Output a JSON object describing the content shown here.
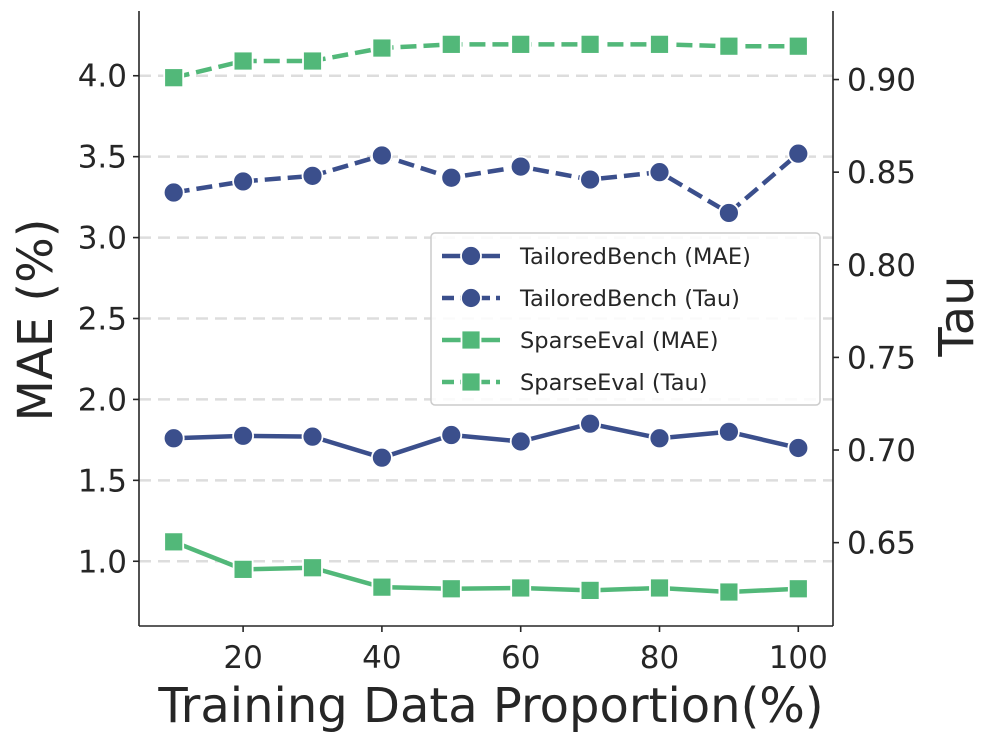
{
  "chart_data": {
    "type": "line",
    "xlabel": "Training Data Proportion(%)",
    "ylabel_left": "MAE (%)",
    "ylabel_right": "Tau",
    "x": [
      10,
      20,
      30,
      40,
      50,
      60,
      70,
      80,
      90,
      100
    ],
    "xticks": [
      20,
      40,
      60,
      80,
      100
    ],
    "xticks_text": [
      "20",
      "40",
      "60",
      "80",
      "100"
    ],
    "xlim": [
      5,
      105
    ],
    "ylim_left": [
      0.6,
      4.4
    ],
    "yticks_left": [
      1.0,
      1.5,
      2.0,
      2.5,
      3.0,
      3.5,
      4.0
    ],
    "yticks_left_text": [
      "1.0",
      "1.5",
      "2.0",
      "2.5",
      "3.0",
      "3.5",
      "4.0"
    ],
    "ylim_right": [
      0.605,
      0.937
    ],
    "yticks_right": [
      0.65,
      0.7,
      0.75,
      0.8,
      0.85,
      0.9
    ],
    "yticks_right_text": [
      "0.65",
      "0.70",
      "0.75",
      "0.80",
      "0.85",
      "0.90"
    ],
    "grid": "horizontal dashed (left axis)",
    "legend_position": "center-right",
    "series": [
      {
        "name": "TailoredBench (MAE)",
        "axis": "left",
        "marker": "circle",
        "linestyle": "solid",
        "color": "#3b4f8c",
        "values": [
          1.76,
          1.775,
          1.77,
          1.64,
          1.78,
          1.74,
          1.85,
          1.76,
          1.8,
          1.7
        ]
      },
      {
        "name": "TailoredBench (Tau)",
        "axis": "right",
        "marker": "circle",
        "linestyle": "dashed",
        "color": "#3b4f8c",
        "values": [
          0.839,
          0.845,
          0.848,
          0.859,
          0.847,
          0.853,
          0.846,
          0.85,
          0.828,
          0.86
        ]
      },
      {
        "name": "SparseEval (MAE)",
        "axis": "left",
        "marker": "square",
        "linestyle": "solid",
        "color": "#52b879",
        "values": [
          1.12,
          0.95,
          0.96,
          0.84,
          0.83,
          0.835,
          0.82,
          0.835,
          0.81,
          0.83
        ]
      },
      {
        "name": "SparseEval (Tau)",
        "axis": "right",
        "marker": "square",
        "linestyle": "dashed",
        "color": "#52b879",
        "values": [
          0.901,
          0.91,
          0.91,
          0.917,
          0.919,
          0.919,
          0.919,
          0.919,
          0.918,
          0.918
        ]
      }
    ]
  }
}
